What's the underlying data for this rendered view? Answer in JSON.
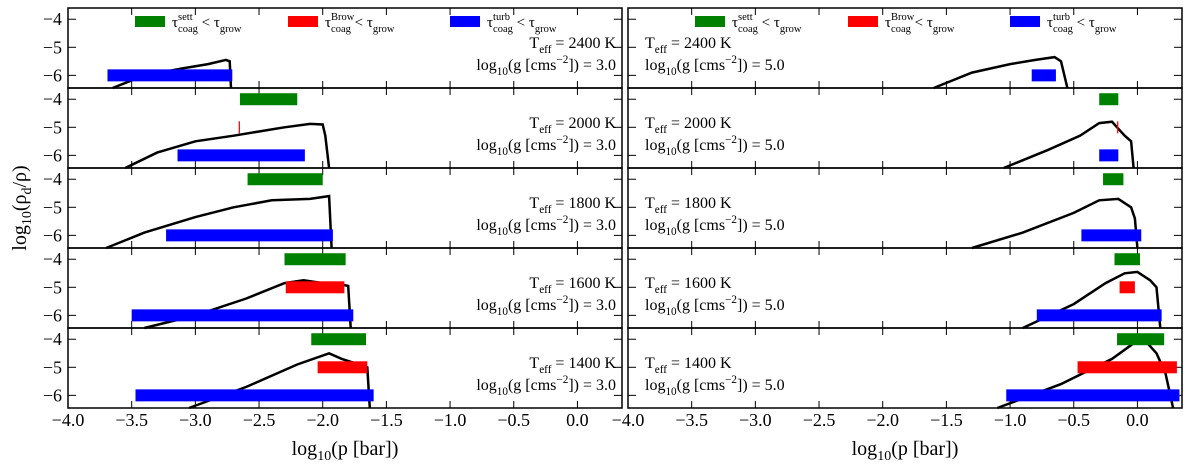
{
  "chart_data": {
    "type": "range-bar",
    "xlabel": [
      "log",
      "10",
      "(p [bar])"
    ],
    "ylabel": [
      "log",
      "10",
      "(ρ",
      "d",
      "/ρ)"
    ],
    "xlim": [
      -4,
      0.35
    ],
    "xticks": [
      {
        "value": -4,
        "label": "−4.0"
      },
      {
        "value": -3.5,
        "label": "−3.5"
      },
      {
        "value": -3,
        "label": "−3.0"
      },
      {
        "value": -2.5,
        "label": "−2.5"
      },
      {
        "value": -2,
        "label": "−2.0"
      },
      {
        "value": -1.5,
        "label": "−1.5"
      },
      {
        "value": -1,
        "label": "−1.0"
      },
      {
        "value": -0.5,
        "label": "−0.5"
      },
      {
        "value": 0,
        "label": "0.0"
      }
    ],
    "ylim": [
      -6.45,
      -3.6
    ],
    "yticks": [
      {
        "value": -4,
        "label": "−4"
      },
      {
        "value": -5,
        "label": "−5"
      },
      {
        "value": -6,
        "label": "−6"
      }
    ],
    "curve_color": "#000000",
    "series": [
      {
        "name": [
          "τ",
          "sett",
          "coag",
          " < τ",
          "grow"
        ],
        "color": "#008000",
        "level": -4
      },
      {
        "name": [
          "τ",
          "Brow",
          "coag",
          " < τ",
          "grow"
        ],
        "color": "#ff0000",
        "level": -5
      },
      {
        "name": [
          "τ",
          "turb",
          "coag",
          " < τ",
          "grow"
        ],
        "color": "#0000ff",
        "level": -6
      }
    ],
    "panels": [
      {
        "teff": [
          "T",
          "eff",
          " = 2400 K"
        ],
        "logg": [
          "log",
          "10",
          "(g [cms",
          "−2",
          "]) = 3.0"
        ],
        "bars": [
          null,
          null,
          [
            -3.69,
            -2.71
          ]
        ],
        "x": [
          -3.65,
          -3.4,
          -3.1,
          -2.9,
          -2.76,
          -2.73,
          -2.72
        ],
        "values": [
          -6.45,
          -6.0,
          -5.75,
          -5.6,
          -5.45,
          -5.5,
          -6.45
        ]
      },
      {
        "teff": [
          "T",
          "eff",
          " = 2400 K"
        ],
        "logg": [
          "log",
          "10",
          "(g [cms",
          "−2",
          "]) = 5.0"
        ],
        "bars": [
          null,
          null,
          [
            -0.83,
            -0.64
          ]
        ],
        "x": [
          -1.6,
          -1.3,
          -1.0,
          -0.8,
          -0.65,
          -0.6,
          -0.55
        ],
        "values": [
          -6.45,
          -5.9,
          -5.6,
          -5.45,
          -5.35,
          -5.5,
          -6.45
        ]
      },
      {
        "teff": [
          "T",
          "eff",
          " = 2000 K"
        ],
        "logg": [
          "log",
          "10",
          "(g [cms",
          "−2",
          "]) = 3.0"
        ],
        "bars": [
          [
            -2.65,
            -2.2
          ],
          [
            -2.66,
            -2.65
          ],
          [
            -3.14,
            -2.14
          ]
        ],
        "x": [
          -3.55,
          -3.3,
          -3.0,
          -2.7,
          -2.5,
          -2.3,
          -2.1,
          -2.0,
          -1.98,
          -1.95
        ],
        "values": [
          -6.45,
          -5.9,
          -5.5,
          -5.3,
          -5.15,
          -5.0,
          -4.88,
          -4.9,
          -5.3,
          -6.45
        ]
      },
      {
        "teff": [
          "T",
          "eff",
          " = 2000 K"
        ],
        "logg": [
          "log",
          "10",
          "(g [cms",
          "−2",
          "]) = 5.0"
        ],
        "bars": [
          [
            -0.3,
            -0.15
          ],
          [
            -0.16,
            -0.15
          ],
          [
            -0.3,
            -0.15
          ]
        ],
        "x": [
          -1.05,
          -0.7,
          -0.45,
          -0.3,
          -0.2,
          -0.15,
          -0.1,
          -0.05,
          -0.03
        ],
        "values": [
          -6.45,
          -5.8,
          -5.3,
          -4.85,
          -4.8,
          -5.05,
          -5.3,
          -5.5,
          -6.45
        ]
      },
      {
        "teff": [
          "T",
          "eff",
          " = 1800 K"
        ],
        "logg": [
          "log",
          "10",
          "(g [cms",
          "−2",
          "]) = 3.0"
        ],
        "bars": [
          [
            -2.59,
            -2.0
          ],
          null,
          [
            -3.23,
            -1.92
          ]
        ],
        "x": [
          -3.7,
          -3.4,
          -3.0,
          -2.7,
          -2.4,
          -2.1,
          -1.95,
          -1.93
        ],
        "values": [
          -6.45,
          -5.9,
          -5.35,
          -5.0,
          -4.75,
          -4.7,
          -4.6,
          -6.45
        ]
      },
      {
        "teff": [
          "T",
          "eff",
          " = 1800 K"
        ],
        "logg": [
          "log",
          "10",
          "(g [cms",
          "−2",
          "]) = 5.0"
        ],
        "bars": [
          [
            -0.27,
            -0.11
          ],
          null,
          [
            -0.44,
            0.03
          ]
        ],
        "x": [
          -1.3,
          -0.9,
          -0.5,
          -0.3,
          -0.15,
          -0.05,
          -0.02,
          0.0
        ],
        "values": [
          -6.45,
          -5.9,
          -5.2,
          -4.75,
          -4.7,
          -5.0,
          -5.4,
          -6.45
        ]
      },
      {
        "teff": [
          "T",
          "eff",
          " = 1600 K"
        ],
        "logg": [
          "log",
          "10",
          "(g [cms",
          "−2",
          "]) = 3.0"
        ],
        "bars": [
          [
            -2.3,
            -1.82
          ],
          [
            -2.29,
            -1.83
          ],
          [
            -3.5,
            -1.76
          ]
        ],
        "x": [
          -3.4,
          -3.0,
          -2.6,
          -2.3,
          -2.15,
          -2.0,
          -1.9,
          -1.8,
          -1.78
        ],
        "values": [
          -6.45,
          -6.0,
          -5.4,
          -4.85,
          -4.75,
          -4.85,
          -4.85,
          -4.95,
          -6.45
        ]
      },
      {
        "teff": [
          "T",
          "eff",
          " = 1600 K"
        ],
        "logg": [
          "log",
          "10",
          "(g [cms",
          "−2",
          "]) = 5.0"
        ],
        "bars": [
          [
            -0.18,
            0.02
          ],
          [
            -0.14,
            -0.02
          ],
          [
            -0.79,
            0.19
          ]
        ],
        "x": [
          -0.9,
          -0.5,
          -0.25,
          -0.1,
          0.0,
          0.1,
          0.15,
          0.18
        ],
        "values": [
          -6.45,
          -5.6,
          -4.85,
          -4.5,
          -4.45,
          -4.75,
          -5.0,
          -6.45
        ]
      },
      {
        "teff": [
          "T",
          "eff",
          " = 1400 K"
        ],
        "logg": [
          "log",
          "10",
          "(g [cms",
          "−2",
          "]) = 3.0"
        ],
        "bars": [
          [
            -2.09,
            -1.66
          ],
          [
            -2.04,
            -1.65
          ],
          [
            -3.47,
            -1.6
          ]
        ],
        "x": [
          -3.05,
          -2.6,
          -2.2,
          -1.95,
          -1.85,
          -1.75,
          -1.65,
          -1.63
        ],
        "values": [
          -6.45,
          -5.7,
          -4.9,
          -4.5,
          -4.7,
          -4.85,
          -5.0,
          -6.45
        ]
      },
      {
        "teff": [
          "T",
          "eff",
          " = 1400 K"
        ],
        "logg": [
          "log",
          "10",
          "(g [cms",
          "−2",
          "]) = 5.0"
        ],
        "bars": [
          [
            -0.16,
            0.21
          ],
          [
            -0.47,
            0.31
          ],
          [
            -1.03,
            0.33
          ]
        ],
        "x": [
          -1.1,
          -0.6,
          -0.2,
          0.0,
          0.05,
          0.15,
          0.22,
          0.28
        ],
        "values": [
          -6.45,
          -5.6,
          -4.7,
          -4.05,
          -4.0,
          -4.5,
          -5.2,
          -6.45
        ]
      }
    ]
  }
}
